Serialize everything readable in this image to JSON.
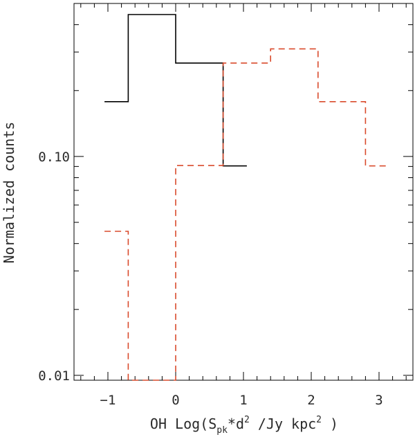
{
  "chart_data": {
    "type": "step",
    "xlabel": {
      "prefix": "OH Log(S",
      "sub": "pk",
      "mid": "*d",
      "sup1": "2",
      "mid2": " /Jy  kpc",
      "sup2": "2",
      "suffix": " )"
    },
    "ylabel": "Normalized counts",
    "xlim": [
      -1.5,
      3.5
    ],
    "ylim": [
      0.0095,
      0.5
    ],
    "yscale": "log",
    "xticks": [
      -1,
      0,
      1,
      2,
      3
    ],
    "xtick_labels": [
      "−1",
      "0",
      "1",
      "2",
      "3"
    ],
    "yticks": [
      0.01,
      0.1
    ],
    "ytick_labels": [
      "0.01",
      "0.10"
    ],
    "series": [
      {
        "line_style": "solid",
        "color": "#000000",
        "steps": [
          {
            "x0": -1.05,
            "x1": -0.7,
            "y": 0.178
          },
          {
            "x0": -0.7,
            "x1": 0.0,
            "y": 0.445
          },
          {
            "x0": 0.0,
            "x1": 0.7,
            "y": 0.267
          },
          {
            "x0": 0.7,
            "x1": 1.05,
            "y": 0.0905
          }
        ]
      },
      {
        "line_style": "dashed",
        "color": "#d94a2b",
        "steps": [
          {
            "x0": -1.05,
            "x1": -0.7,
            "y": 0.0455
          },
          {
            "x0": -0.7,
            "x1": 0.0,
            "y": 0.0095
          },
          {
            "x0": 0.0,
            "x1": 0.7,
            "y": 0.091
          },
          {
            "x0": 0.7,
            "x1": 1.4,
            "y": 0.267
          },
          {
            "x0": 1.4,
            "x1": 2.1,
            "y": 0.31
          },
          {
            "x0": 2.1,
            "x1": 2.8,
            "y": 0.178
          },
          {
            "x0": 2.8,
            "x1": 3.15,
            "y": 0.0905
          }
        ]
      }
    ],
    "grid": false
  }
}
